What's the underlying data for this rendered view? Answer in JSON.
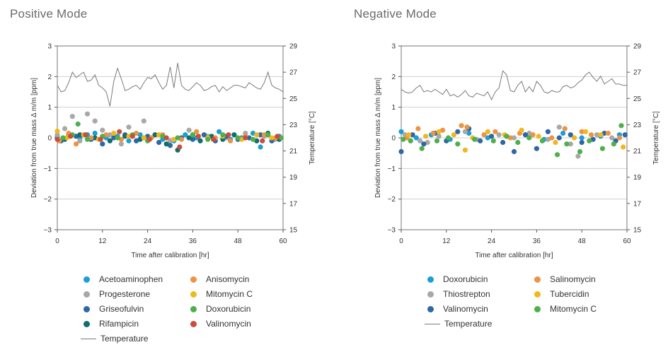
{
  "chart_data": [
    {
      "type": "scatter",
      "title": "Positive Mode",
      "xlabel": "Time after calibration [hr]",
      "ylabel": "Deviation from true mass Δ m/m [ppm]",
      "y2label": "Temperature [°C]",
      "xlim": [
        0,
        60
      ],
      "ylim": [
        -3,
        3
      ],
      "y2lim": [
        15,
        29
      ],
      "xticks": [
        "0",
        "12",
        "24",
        "36",
        "48",
        "60"
      ],
      "yticks": [
        "3",
        "2",
        "1",
        "0",
        "−1",
        "−2",
        "−3"
      ],
      "y2ticks": [
        "29",
        "27",
        "25",
        "23",
        "21",
        "19",
        "17",
        "15"
      ],
      "series": [
        {
          "name": "Acetoaminophen",
          "color": "#1a9ed8",
          "x": [
            0,
            3,
            6,
            8,
            10,
            13,
            16,
            19,
            22,
            25,
            28,
            31,
            34,
            37,
            40,
            43,
            46,
            49,
            52,
            54,
            56,
            59
          ],
          "y": [
            0.05,
            0.1,
            0.0,
            0.1,
            0.15,
            0.0,
            0.05,
            -0.1,
            0.1,
            0.0,
            -0.05,
            -0.1,
            0.1,
            0.0,
            0.05,
            0.2,
            -0.05,
            0.0,
            0.15,
            -0.3,
            0.1,
            0.05
          ]
        },
        {
          "name": "Progesterone",
          "color": "#a8a8a8",
          "x": [
            0,
            2,
            4,
            6,
            8,
            10,
            12,
            14,
            17,
            19,
            23,
            26,
            30,
            35,
            40,
            45,
            50,
            55,
            58
          ],
          "y": [
            0.1,
            0.3,
            0.7,
            -0.1,
            0.78,
            0.55,
            0.25,
            0.1,
            -0.2,
            0.35,
            0.55,
            0.1,
            -0.1,
            0.25,
            0.05,
            0.0,
            0.15,
            0.05,
            -0.05
          ]
        },
        {
          "name": "Griseofulvin",
          "color": "#2f66a6",
          "x": [
            1,
            5,
            9,
            12,
            15,
            18,
            21,
            24,
            27,
            30,
            33,
            36,
            39,
            42,
            45,
            48,
            51,
            54,
            57
          ],
          "y": [
            -0.1,
            0.05,
            -0.05,
            -0.2,
            0.0,
            0.1,
            -0.1,
            0.05,
            -0.15,
            -0.25,
            0.0,
            -0.05,
            0.1,
            -0.1,
            0.05,
            -0.05,
            0.0,
            0.1,
            -0.1
          ]
        },
        {
          "name": "Rifampicin",
          "color": "#0f6e6e",
          "x": [
            2,
            6,
            10,
            14,
            18,
            22,
            26,
            29,
            32,
            35,
            38,
            41,
            44,
            47,
            50,
            53,
            56,
            59
          ],
          "y": [
            -0.05,
            0.1,
            0.0,
            -0.1,
            0.05,
            -0.05,
            0.1,
            -0.2,
            -0.4,
            0.0,
            -0.1,
            0.05,
            -0.05,
            0.1,
            0.0,
            -0.1,
            0.15,
            -0.05
          ]
        },
        {
          "name": "Anisomycin",
          "color": "#ee9243",
          "x": [
            0.5,
            3,
            5,
            9,
            13,
            17,
            21,
            25,
            28,
            33,
            37,
            42,
            46,
            50,
            55,
            58
          ],
          "y": [
            -0.1,
            0.15,
            -0.2,
            0.0,
            0.1,
            -0.05,
            0.15,
            0.0,
            0.1,
            -0.05,
            0.2,
            0.0,
            -0.1,
            0.05,
            0.1,
            0.0
          ]
        },
        {
          "name": "Mitomycin C",
          "color": "#f0b81c",
          "x": [
            0,
            2.5,
            7,
            11,
            15,
            19,
            23,
            27,
            31,
            36,
            40,
            44,
            49,
            53,
            57
          ],
          "y": [
            0.22,
            0.0,
            0.1,
            -0.05,
            0.15,
            0.05,
            0.0,
            0.1,
            -0.05,
            0.1,
            0.0,
            0.05,
            -0.05,
            0.1,
            0.0
          ]
        },
        {
          "name": "Doxorubicin",
          "color": "#4db04a",
          "x": [
            1.5,
            4,
            5.5,
            8,
            12,
            16,
            20,
            24,
            28,
            32,
            36,
            40,
            44,
            48,
            52,
            56,
            59.5
          ],
          "y": [
            0.0,
            0.1,
            0.45,
            -0.05,
            0.05,
            0.0,
            0.1,
            -0.1,
            0.05,
            0.0,
            0.1,
            -0.05,
            0.1,
            0.0,
            -0.05,
            0.1,
            0.0
          ]
        },
        {
          "name": "Valinomycin",
          "color": "#c94e3e",
          "x": [
            0,
            3.5,
            7.5,
            11.5,
            16.5,
            20,
            24.5,
            29,
            32.5,
            37.5,
            41.5,
            45.5,
            50,
            54.5,
            58.5
          ],
          "y": [
            -0.05,
            0.05,
            0.1,
            -0.05,
            0.2,
            0.05,
            -0.05,
            0.0,
            -0.3,
            0.05,
            -0.05,
            0.1,
            0.0,
            -0.1,
            0.05
          ]
        }
      ],
      "temperature": {
        "name": "Temperature",
        "color": "#7a7a7a",
        "x": [
          0,
          1,
          2,
          3,
          4,
          5,
          6,
          7,
          8,
          9,
          10,
          11,
          12,
          13,
          14,
          15,
          16,
          17,
          18,
          19,
          20,
          21,
          22,
          23,
          24,
          25,
          26,
          27,
          28,
          29,
          30,
          31,
          32,
          33,
          34,
          35,
          36,
          37,
          38,
          39,
          40,
          41,
          42,
          43,
          44,
          45,
          46,
          47,
          48,
          49,
          50,
          51,
          52,
          53,
          54,
          55,
          56,
          57,
          58,
          59,
          60
        ],
        "y": [
          26.0,
          25.5,
          25.6,
          26.2,
          27.0,
          26.6,
          26.8,
          27.0,
          26.3,
          26.4,
          26.8,
          26.0,
          25.8,
          25.5,
          24.4,
          26.3,
          27.3,
          26.5,
          25.6,
          25.7,
          25.9,
          26.0,
          25.7,
          26.2,
          26.6,
          26.5,
          26.8,
          26.2,
          25.7,
          26.0,
          27.4,
          25.8,
          27.7,
          26.0,
          25.7,
          25.6,
          25.9,
          26.2,
          26.0,
          25.6,
          25.7,
          25.9,
          26.0,
          25.5,
          25.9,
          25.6,
          25.8,
          26.0,
          26.0,
          25.9,
          25.8,
          26.2,
          26.0,
          25.8,
          25.7,
          26.2,
          27.0,
          26.0,
          25.8,
          25.7,
          25.5
        ]
      }
    },
    {
      "type": "scatter",
      "title": "Negative Mode",
      "xlabel": "Time after calibration [hr]",
      "ylabel": "Deviation from true mass Δ m/m [ppm]",
      "y2label": "Temperature [°C]",
      "xlim": [
        0,
        60
      ],
      "ylim": [
        -3,
        3
      ],
      "y2lim": [
        15,
        29
      ],
      "xticks": [
        "0",
        "12",
        "24",
        "36",
        "48",
        "60"
      ],
      "yticks": [
        "3",
        "2",
        "1",
        "0",
        "−1",
        "−2",
        "−3"
      ],
      "y2ticks": [
        "29",
        "27",
        "25",
        "23",
        "21",
        "19",
        "17",
        "15"
      ],
      "series": [
        {
          "name": "Doxorubicin",
          "color": "#1a9ed8",
          "x": [
            0,
            4,
            8,
            13,
            18,
            23,
            28,
            33,
            38,
            43,
            48,
            53,
            58
          ],
          "y": [
            0.2,
            0.0,
            0.1,
            -0.05,
            0.15,
            0.0,
            0.05,
            0.1,
            -0.05,
            0.15,
            0.0,
            0.05,
            0.1
          ]
        },
        {
          "name": "Thiostrepton",
          "color": "#a8a8a8",
          "x": [
            1,
            5,
            7,
            10,
            17,
            20,
            26,
            30,
            34,
            39,
            42,
            45,
            47,
            52,
            56
          ],
          "y": [
            0.1,
            -0.1,
            -0.15,
            0.05,
            0.2,
            -0.05,
            0.1,
            0.0,
            0.15,
            -0.05,
            0.35,
            -0.2,
            -0.6,
            0.1,
            0.0
          ]
        },
        {
          "name": "Valinomycin",
          "color": "#2f66a6",
          "x": [
            0,
            3,
            6,
            9,
            12,
            15,
            18,
            21,
            24,
            27,
            30,
            33,
            36,
            39,
            42,
            45,
            48,
            51,
            54,
            57,
            59.5
          ],
          "y": [
            -0.45,
            0.1,
            -0.2,
            0.15,
            -0.1,
            0.2,
            0.3,
            -0.1,
            0.05,
            -0.15,
            -0.45,
            0.1,
            -0.35,
            0.2,
            0.0,
            0.1,
            -0.15,
            -0.05,
            0.15,
            -0.1,
            0.1
          ]
        },
        {
          "name": "Salinomycin",
          "color": "#ee9243",
          "x": [
            1.5,
            4.5,
            8.5,
            11,
            16,
            17.5,
            22,
            25,
            29,
            31.5,
            35,
            40,
            43.5,
            48,
            50.5,
            55,
            58
          ],
          "y": [
            0.0,
            0.3,
            0.15,
            0.25,
            0.4,
            0.35,
            0.1,
            0.2,
            0.0,
            0.15,
            0.1,
            0.0,
            0.3,
            0.2,
            0.1,
            0.15,
            0.0
          ]
        },
        {
          "name": "Tubercidin",
          "color": "#f0b81c",
          "x": [
            2,
            6.5,
            10,
            14,
            17,
            19,
            23,
            27.5,
            32,
            36.5,
            41,
            46,
            49,
            53,
            59
          ],
          "y": [
            0.1,
            0.05,
            0.2,
            0.1,
            -0.4,
            0.0,
            0.2,
            0.1,
            0.25,
            0.05,
            -0.15,
            0.0,
            0.2,
            0.1,
            -0.3
          ]
        },
        {
          "name": "Mitomycin C",
          "color": "#4db04a",
          "x": [
            0.5,
            2.5,
            5.5,
            9.5,
            12.5,
            15,
            19.5,
            24.5,
            28,
            31,
            34,
            37.5,
            41.5,
            44,
            47.5,
            50,
            53.5,
            56.5,
            58.5
          ],
          "y": [
            -0.05,
            -0.1,
            -0.35,
            -0.1,
            0.0,
            -0.2,
            -0.05,
            -0.1,
            0.05,
            -0.15,
            0.0,
            -0.1,
            -0.55,
            -0.2,
            -0.45,
            -0.1,
            -0.35,
            -0.2,
            0.4
          ]
        }
      ],
      "temperature": {
        "name": "Temperature",
        "color": "#7a7a7a",
        "x": [
          0,
          1,
          2,
          3,
          4,
          5,
          6,
          7,
          8,
          9,
          10,
          11,
          12,
          13,
          14,
          15,
          16,
          17,
          18,
          19,
          20,
          21,
          22,
          23,
          24,
          25,
          26,
          27,
          28,
          29,
          30,
          31,
          32,
          33,
          34,
          35,
          36,
          37,
          38,
          39,
          40,
          41,
          42,
          43,
          44,
          45,
          46,
          47,
          48,
          49,
          50,
          51,
          52,
          53,
          54,
          55,
          56,
          57,
          58,
          59,
          60
        ],
        "y": [
          25.7,
          25.5,
          25.4,
          25.5,
          25.8,
          26.0,
          25.5,
          25.6,
          25.5,
          25.7,
          25.5,
          25.3,
          25.7,
          25.2,
          25.3,
          25.1,
          25.3,
          25.6,
          25.2,
          25.1,
          25.4,
          25.3,
          25.2,
          25.5,
          24.9,
          25.5,
          25.8,
          27.1,
          26.8,
          25.6,
          25.5,
          26.0,
          26.3,
          25.5,
          25.9,
          25.5,
          26.3,
          26.0,
          25.5,
          25.4,
          25.6,
          25.5,
          25.5,
          25.9,
          26.0,
          25.8,
          25.9,
          26.2,
          26.4,
          26.8,
          27.0,
          26.6,
          26.3,
          26.7,
          26.1,
          26.3,
          26.5,
          26.1,
          26.1,
          26.0,
          26.0
        ]
      }
    }
  ]
}
